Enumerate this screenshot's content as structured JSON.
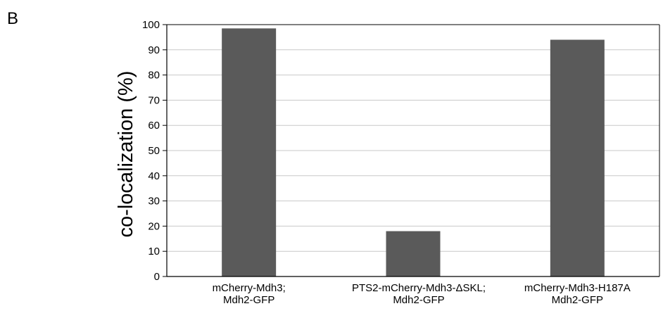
{
  "panel_label": "B",
  "chart_data": {
    "type": "bar",
    "title": "",
    "xlabel": "",
    "ylabel": "co-localization (%)",
    "ylim": [
      0,
      100
    ],
    "yticks": [
      0,
      10,
      20,
      30,
      40,
      50,
      60,
      70,
      80,
      90,
      100
    ],
    "grid": true,
    "categories": [
      [
        "mCherry-Mdh3;",
        "Mdh2-GFP"
      ],
      [
        "PTS2-mCherry-Mdh3-ΔSKL;",
        "Mdh2-GFP"
      ],
      [
        "mCherry-Mdh3-H187A",
        "Mdh2-GFP"
      ]
    ],
    "values": [
      98.5,
      18,
      94
    ],
    "bar_color": "#5a5a5a",
    "grid_color": "#c8c8c8"
  }
}
